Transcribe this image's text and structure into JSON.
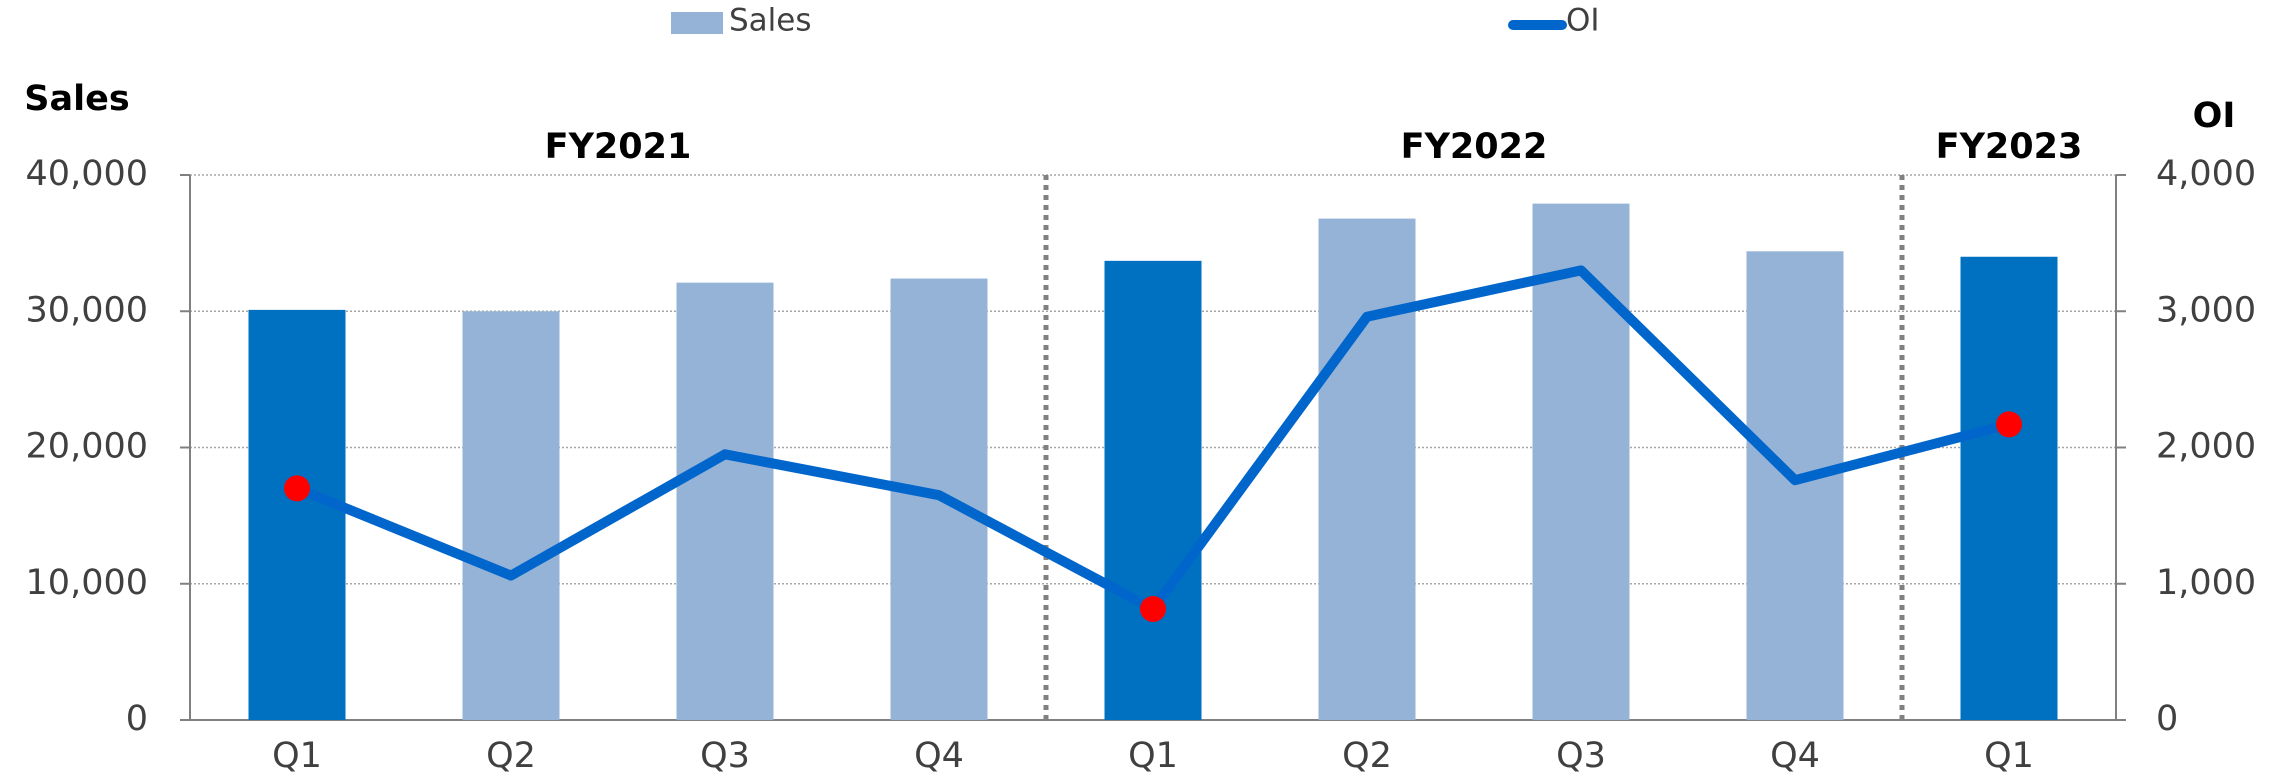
{
  "chart_data": {
    "type": "bar_line",
    "y_label": "Sales",
    "y2_label": "OI",
    "categories": [
      "Q1",
      "Q2",
      "Q3",
      "Q4",
      "Q1",
      "Q2",
      "Q3",
      "Q4",
      "Q1"
    ],
    "groups": [
      {
        "label": "FY2021",
        "start": 0,
        "end": 3
      },
      {
        "label": "FY2022",
        "start": 4,
        "end": 7
      },
      {
        "label": "FY2023",
        "start": 8,
        "end": 8
      }
    ],
    "series": [
      {
        "name": "Sales",
        "type": "bar",
        "color": "#95b3d7",
        "colors": [
          "#0070c0",
          "#95b3d7",
          "#95b3d7",
          "#95b3d7",
          "#0070c0",
          "#95b3d7",
          "#95b3d7",
          "#95b3d7",
          "#0070c0"
        ],
        "values": [
          30100,
          30000,
          32100,
          32400,
          33700,
          36800,
          37900,
          34400,
          34000
        ]
      },
      {
        "name": "OI",
        "type": "line",
        "axis": "y2",
        "color": "#0066cc",
        "marker_color": "#ff0000",
        "markers": [
          true,
          false,
          false,
          false,
          true,
          false,
          false,
          false,
          true
        ],
        "values": [
          1700,
          1060,
          1950,
          1650,
          815,
          2960,
          3300,
          1760,
          2170
        ]
      }
    ],
    "ylim": [
      0,
      40000
    ],
    "yticks": [
      {
        "value": 0,
        "label": "0"
      },
      {
        "value": 10000,
        "label": "10,000"
      },
      {
        "value": 20000,
        "label": "20,000"
      },
      {
        "value": 30000,
        "label": "30,000"
      },
      {
        "value": 40000,
        "label": "40,000"
      }
    ],
    "y2lim": [
      0,
      4000
    ],
    "y2ticks": [
      {
        "value": 0,
        "label": "0"
      },
      {
        "value": 1000,
        "label": "1,000"
      },
      {
        "value": 2000,
        "label": "2,000"
      },
      {
        "value": 3000,
        "label": "3,000"
      },
      {
        "value": 4000,
        "label": "4,000"
      }
    ],
    "grid": true
  }
}
